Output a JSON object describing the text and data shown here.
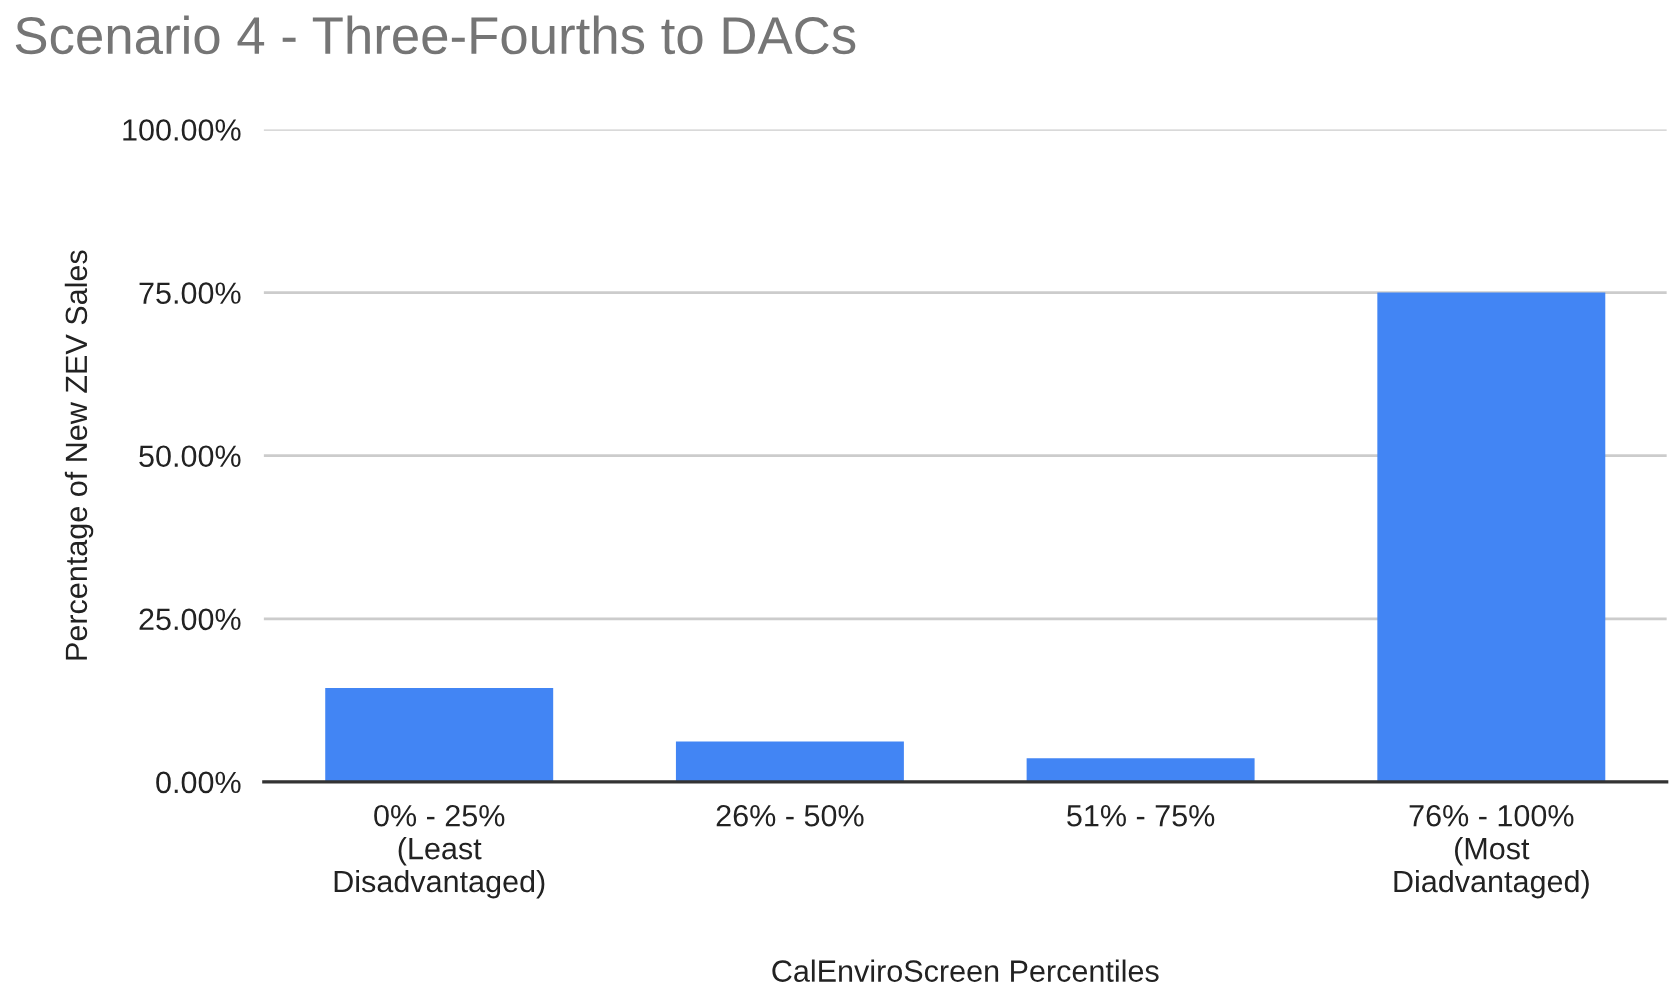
{
  "chart_data": {
    "type": "bar",
    "title": "Scenario 4 - Three-Fourths to DACs",
    "xlabel": "CalEnviroScreen Percentiles",
    "ylabel": "Percentage of New ZEV Sales",
    "categories": [
      "0% - 25%\n(Least\nDisadvantaged)",
      "26% - 50%",
      "51% - 75%",
      "76% - 100%\n(Most\nDiadvantaged)"
    ],
    "values": [
      14.4,
      6.2,
      3.6,
      75.0
    ],
    "color": "#4285f4",
    "ylim": [
      0,
      100
    ],
    "yticks": [
      {
        "value": 0,
        "label": "0.00%"
      },
      {
        "value": 25,
        "label": "25.00%"
      },
      {
        "value": 50,
        "label": "50.00%"
      },
      {
        "value": 75,
        "label": "75.00%"
      },
      {
        "value": 100,
        "label": "100.00%"
      }
    ],
    "grid": "y"
  }
}
